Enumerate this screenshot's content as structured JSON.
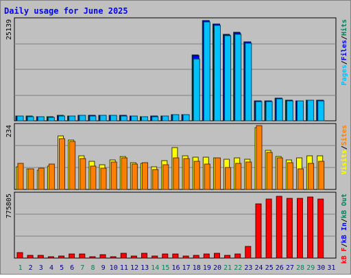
{
  "title": "Daily usage for June 2025",
  "colors": {
    "frame_bg": "#c0c0c0",
    "plot_bg": "#c0c0c0",
    "title": "#0000ff",
    "hits": "#00805c",
    "files": "#0000ff",
    "pages": "#00c0ff",
    "visits": "#ffff00",
    "sites": "#ff8000",
    "kbytes": "#ff0000",
    "kb_in": "#0000ff",
    "kb_out": "#00805c",
    "weekend_day": "#00805c",
    "weekday": "#000080"
  },
  "chart_data": [
    {
      "type": "bar",
      "name": "hits-files-pages",
      "categories": [
        "1",
        "2",
        "3",
        "4",
        "5",
        "6",
        "7",
        "8",
        "9",
        "10",
        "11",
        "12",
        "13",
        "14",
        "15",
        "16",
        "17",
        "18",
        "19",
        "20",
        "21",
        "22",
        "23",
        "24",
        "25",
        "26",
        "27",
        "28",
        "29",
        "30",
        "31"
      ],
      "axis_max_label": "25139",
      "ylim": [
        0,
        25139
      ],
      "legend": [
        {
          "label": "Pages",
          "color": "#00c0ff"
        },
        {
          "label": "/",
          "color": "#000000"
        },
        {
          "label": "Files",
          "color": "#0000ff"
        },
        {
          "label": "/",
          "color": "#000000"
        },
        {
          "label": "Hits",
          "color": "#00805c"
        }
      ],
      "series": [
        {
          "name": "Hits",
          "values": [
            1240,
            1140,
            1090,
            960,
            1300,
            1250,
            1360,
            1320,
            1430,
            1390,
            1320,
            1290,
            1090,
            1170,
            1280,
            1530,
            1630,
            16600,
            25139,
            24400,
            21700,
            22200,
            19900,
            4950,
            4950,
            5640,
            5150,
            5050,
            5250,
            5150,
            null
          ]
        },
        {
          "name": "Files",
          "values": [
            1220,
            1120,
            1070,
            940,
            1280,
            1230,
            1340,
            1300,
            1410,
            1370,
            1300,
            1270,
            1070,
            1150,
            1260,
            1510,
            1610,
            16400,
            25100,
            24300,
            21600,
            22100,
            19800,
            4930,
            4930,
            5620,
            5130,
            5030,
            5230,
            5130,
            null
          ]
        },
        {
          "name": "Pages",
          "values": [
            1180,
            1080,
            1030,
            900,
            1240,
            1190,
            1300,
            1260,
            1370,
            1330,
            1260,
            1230,
            1030,
            1110,
            1220,
            1470,
            1570,
            15600,
            24900,
            24000,
            21300,
            21800,
            19500,
            4880,
            4880,
            5560,
            5080,
            4980,
            5180,
            5080,
            null
          ]
        }
      ]
    },
    {
      "type": "bar",
      "name": "visits-sites",
      "categories": [
        "1",
        "2",
        "3",
        "4",
        "5",
        "6",
        "7",
        "8",
        "9",
        "10",
        "11",
        "12",
        "13",
        "14",
        "15",
        "16",
        "17",
        "18",
        "19",
        "20",
        "21",
        "22",
        "23",
        "24",
        "25",
        "26",
        "27",
        "28",
        "29",
        "30",
        "31"
      ],
      "axis_max_label": "234",
      "ylim": [
        0,
        234
      ],
      "legend": [
        {
          "label": "Visits",
          "color": "#ffff00"
        },
        {
          "label": "/",
          "color": "#000000"
        },
        {
          "label": "Sites",
          "color": "#ff8000"
        }
      ],
      "series": [
        {
          "name": "Visits",
          "values": [
            83,
            77,
            72,
            86,
            198,
            182,
            124,
            103,
            91,
            108,
            121,
            98,
            96,
            83,
            106,
            155,
            124,
            118,
            118,
            117,
            112,
            117,
            112,
            227,
            143,
            122,
            109,
            117,
            125,
            124,
            null
          ]
        },
        {
          "name": "Sites",
          "values": [
            95,
            76,
            78,
            93,
            186,
            178,
            113,
            85,
            78,
            100,
            116,
            94,
            98,
            74,
            90,
            115,
            114,
            103,
            94,
            117,
            82,
            96,
            101,
            234,
            137,
            115,
            98,
            76,
            95,
            103,
            null
          ]
        }
      ]
    },
    {
      "type": "bar",
      "name": "kbytes",
      "categories": [
        "1",
        "2",
        "3",
        "4",
        "5",
        "6",
        "7",
        "8",
        "9",
        "10",
        "11",
        "12",
        "13",
        "14",
        "15",
        "16",
        "17",
        "18",
        "19",
        "20",
        "21",
        "22",
        "23",
        "24",
        "25",
        "26",
        "27",
        "28",
        "29",
        "30",
        "31"
      ],
      "axis_max_label": "775805",
      "ylim": [
        0,
        775805
      ],
      "legend": [
        {
          "label": "kB F",
          "color": "#ff0000"
        },
        {
          "label": "/",
          "color": "#000000"
        },
        {
          "label": "kB In",
          "color": "#0000ff"
        },
        {
          "label": "/",
          "color": "#000000"
        },
        {
          "label": "kB Out",
          "color": "#00805c"
        }
      ],
      "series": [
        {
          "name": "kB F",
          "values": [
            66000,
            35000,
            35000,
            18000,
            26000,
            50000,
            50000,
            18000,
            41000,
            18000,
            62000,
            22000,
            62000,
            29000,
            47000,
            52000,
            25000,
            35000,
            48000,
            55000,
            30000,
            48000,
            140000,
            660000,
            720000,
            758000,
            725000,
            730000,
            742000,
            720000,
            null
          ]
        }
      ]
    }
  ]
}
